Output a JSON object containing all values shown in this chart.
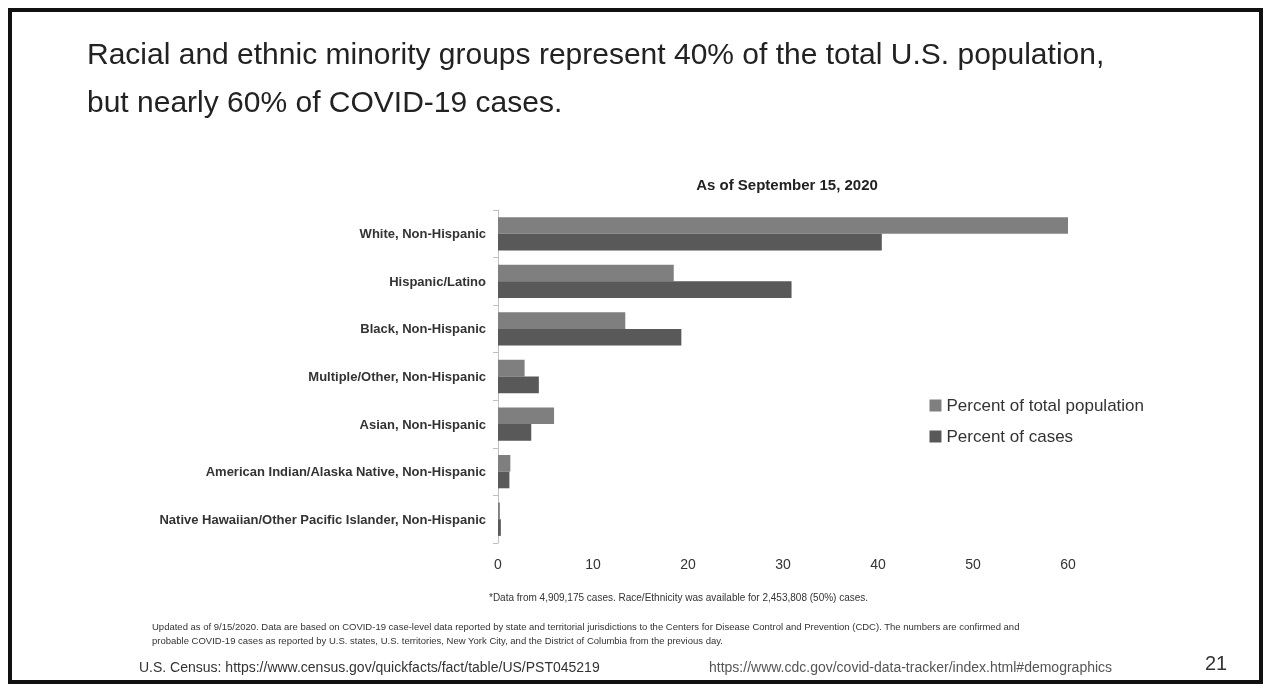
{
  "chart_data": {
    "type": "bar",
    "orientation": "horizontal",
    "title": "Racial and ethnic minority groups represent 40% of the total U.S. population, but nearly 60% of COVID-19 cases.",
    "subtitle": "As of September 15, 2020",
    "categories": [
      "White, Non-Hispanic",
      "Hispanic/Latino",
      "Black, Non-Hispanic",
      "Multiple/Other, Non-Hispanic",
      "Asian, Non-Hispanic",
      "American Indian/Alaska Native, Non-Hispanic",
      "Native Hawaiian/Other Pacific Islander, Non-Hispanic"
    ],
    "series": [
      {
        "name": "Percent of total population",
        "color": "#7f7f7f",
        "values": [
          60.0,
          18.5,
          13.4,
          2.8,
          5.9,
          1.3,
          0.2
        ]
      },
      {
        "name": "Percent of cases",
        "color": "#595959",
        "values": [
          40.4,
          30.9,
          19.3,
          4.3,
          3.5,
          1.2,
          0.3
        ]
      }
    ],
    "xlim": [
      0,
      60
    ],
    "xticks": [
      0,
      10,
      20,
      30,
      40,
      50,
      60
    ],
    "grid": false,
    "legend": "right",
    "annotations": [
      "*Data from 4,909,175 cases. Race/Ethnicity was available for 2,453,808 (50%) cases.",
      "Updated as of 9/15/2020. Data are based on COVID-19 case-level data reported by state and territorial jurisdictions to the Centers for Disease Control and Prevention (CDC). The numbers are confirmed and probable COVID-19 cases as reported by U.S. states, U.S. territories, New York City, and the District of Columbia from the previous day.",
      "U.S. Census: https://www.census.gov/quickfacts/fact/table/US/PST045219",
      "https://www.cdc.gov/covid-data-tracker/index.html#demographics",
      "21"
    ]
  }
}
